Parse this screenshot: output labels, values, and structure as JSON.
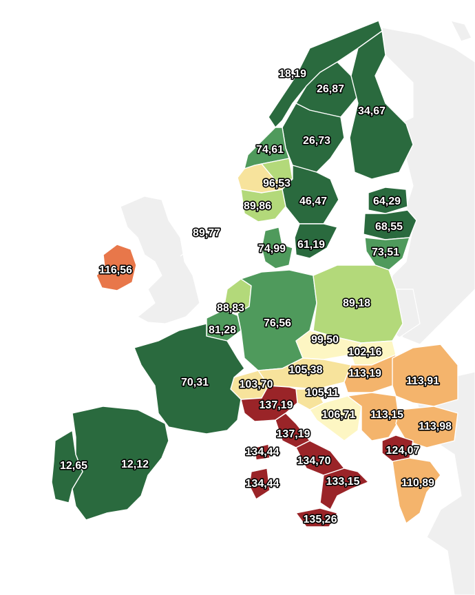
{
  "colors": {
    "background_land": "#efefef",
    "sea": "#ffffff",
    "dark_green": "#2a6a3e",
    "green": "#4f9a5c",
    "light_green": "#b3d97a",
    "pale_yellow": "#fdf6c3",
    "yellow": "#f7e39c",
    "light_orange": "#f4b46c",
    "orange": "#e8774a",
    "dark_red": "#9a2428"
  },
  "values": {
    "norway_north": "18,19",
    "sweden_north": "26,87",
    "finland_north": "34,67",
    "sweden_mid": "26,73",
    "norway_mid": "74,61",
    "norway_west": "96,53",
    "sweden_south_mid": "46,47",
    "norway_south": "89,86",
    "estonia": "64,29",
    "latvia": "68,55",
    "uk_callout": "89,77",
    "denmark": "74,99",
    "sweden_south": "61,19",
    "lithuania": "73,51",
    "ireland": "116,56",
    "netherlands": "88,83",
    "poland": "89,18",
    "germany": "76,56",
    "belgium": "81,28",
    "czechia": "99,50",
    "slovakia": "102,16",
    "france": "70,31",
    "austria": "105,38",
    "hungary": "113,19",
    "romania": "113,91",
    "switzerland": "103,70",
    "slovenia": "105,11",
    "italy_north": "137,19",
    "croatia": "106,71",
    "serbia": "113,15",
    "bulgaria": "113,98",
    "italy_central": "137,19",
    "sardinia_north": "134,44",
    "italy_south": "134,70",
    "north_macedonia": "124,07",
    "portugal": "12,65",
    "spain": "12,12",
    "sardinia": "134,44",
    "italy_calabria": "133,15",
    "greece": "110,89",
    "sicily": "135,26"
  }
}
